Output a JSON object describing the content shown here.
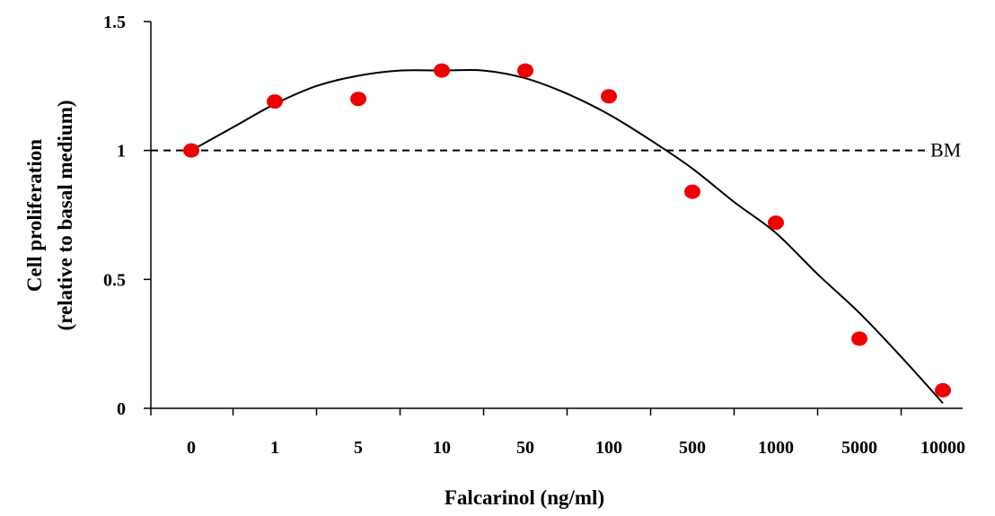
{
  "chart_data": {
    "type": "scatter",
    "categories": [
      "0",
      "1",
      "5",
      "10",
      "50",
      "100",
      "500",
      "1000",
      "5000",
      "10000"
    ],
    "values": [
      1.0,
      1.19,
      1.2,
      1.31,
      1.31,
      1.21,
      0.84,
      0.72,
      0.27,
      0.07
    ],
    "fit_curve": [
      [
        0,
        1.0
      ],
      [
        0.5,
        1.09
      ],
      [
        1,
        1.18
      ],
      [
        1.5,
        1.25
      ],
      [
        2,
        1.29
      ],
      [
        2.5,
        1.31
      ],
      [
        3,
        1.31
      ],
      [
        3.5,
        1.31
      ],
      [
        4,
        1.28
      ],
      [
        4.5,
        1.22
      ],
      [
        5,
        1.14
      ],
      [
        5.5,
        1.04
      ],
      [
        6,
        0.93
      ],
      [
        6.5,
        0.8
      ],
      [
        7,
        0.68
      ],
      [
        7.5,
        0.52
      ],
      [
        8,
        0.37
      ],
      [
        8.5,
        0.2
      ],
      [
        9,
        0.02
      ]
    ],
    "reference_line": {
      "y": 1.0,
      "label": "BM",
      "style": "dashed"
    },
    "xlabel": "Falcarinol (ng/ml)",
    "ylabel_lines": [
      "Cell proliferation",
      "(relative to basal medium)"
    ],
    "yticks": [
      "0",
      "0.5",
      "1",
      "1.5"
    ],
    "ytick_values": [
      0,
      0.5,
      1,
      1.5
    ],
    "ylim": [
      0,
      1.5
    ],
    "grid": false,
    "legend": "none",
    "point_color": "#ee0000",
    "line_color": "#000000"
  }
}
